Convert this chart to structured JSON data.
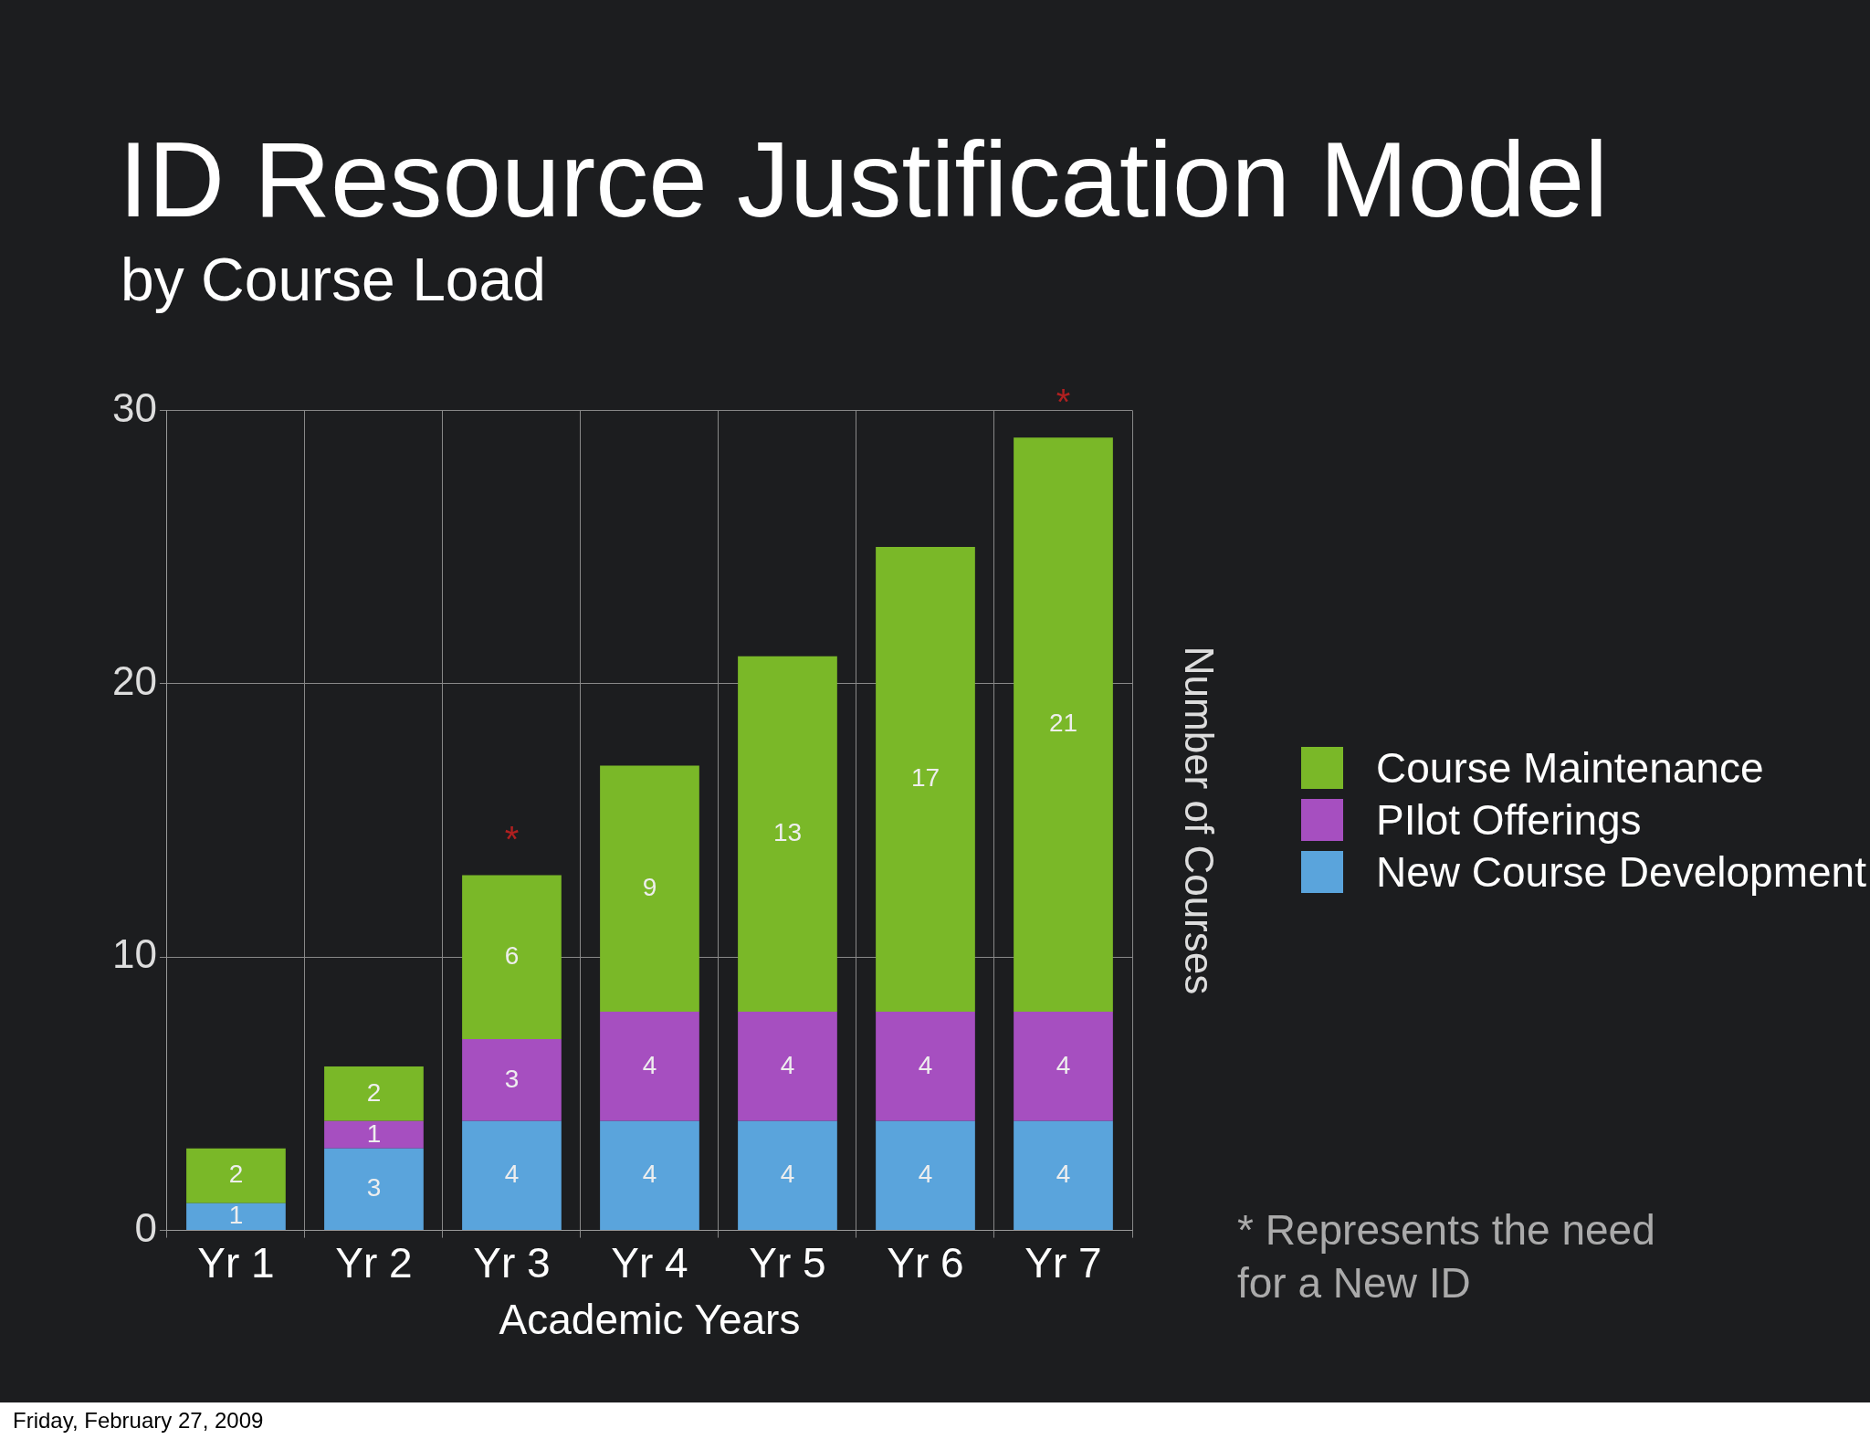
{
  "chart_data": {
    "type": "bar",
    "title": "ID Resource Justification Model",
    "subtitle": "by Course Load",
    "xlabel": "Academic Years",
    "ylabel": "Number of Courses",
    "categories": [
      "Yr 1",
      "Yr 2",
      "Yr 3",
      "Yr 4",
      "Yr 5",
      "Yr 6",
      "Yr 7"
    ],
    "series": [
      {
        "name": "New Course Development",
        "color": "#5aa4dc",
        "values": [
          1,
          3,
          4,
          4,
          4,
          4,
          4
        ]
      },
      {
        "name": "PIlot Offerings",
        "color": "#a64fc0",
        "values": [
          null,
          1,
          3,
          4,
          4,
          4,
          4
        ]
      },
      {
        "name": "Course Maintenance",
        "color": "#7ab828",
        "values": [
          2,
          2,
          6,
          9,
          13,
          17,
          21
        ]
      }
    ],
    "stacked": true,
    "data_labels": true,
    "ylim": [
      0,
      30
    ],
    "yticks": [
      0,
      10,
      20,
      30
    ],
    "grid": true,
    "legend": "right",
    "annotations": [
      {
        "text": "*",
        "x": "Yr 3",
        "y": 13
      },
      {
        "text": "*",
        "x": "Yr 7",
        "y": 29
      },
      "* Represents the need for a New ID",
      "Friday, February 27, 2009"
    ]
  }
}
